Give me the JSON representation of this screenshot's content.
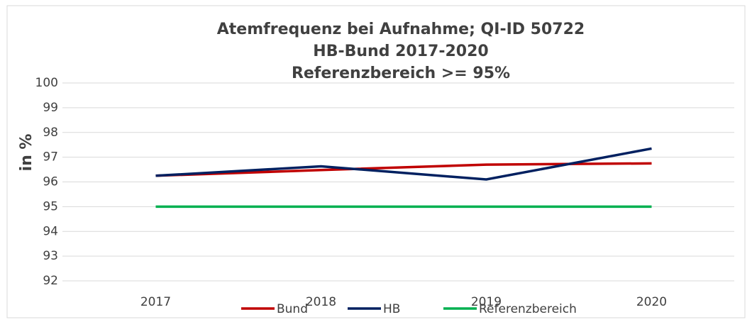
{
  "chart_data": {
    "type": "line",
    "title": [
      "Atemfrequenz bei Aufnahme; QI-ID 50722",
      "HB-Bund 2017-2020",
      "Referenzbereich >= 95%"
    ],
    "y_label": "in %",
    "categories": [
      "2017",
      "2018",
      "2019",
      "2020"
    ],
    "series": [
      {
        "name": "Bund",
        "color": "#c00000",
        "values": [
          96.25,
          96.48,
          96.7,
          96.75
        ]
      },
      {
        "name": "HB",
        "color": "#002060",
        "values": [
          96.25,
          96.63,
          96.1,
          97.35
        ]
      },
      {
        "name": "Referenzbereich",
        "color": "#00b050",
        "values": [
          95,
          95,
          95,
          95
        ]
      }
    ],
    "ylim": [
      92,
      100
    ],
    "yticks": [
      92,
      93,
      94,
      95,
      96,
      97,
      98,
      99,
      100
    ],
    "grid": true,
    "legend": "bottom"
  }
}
